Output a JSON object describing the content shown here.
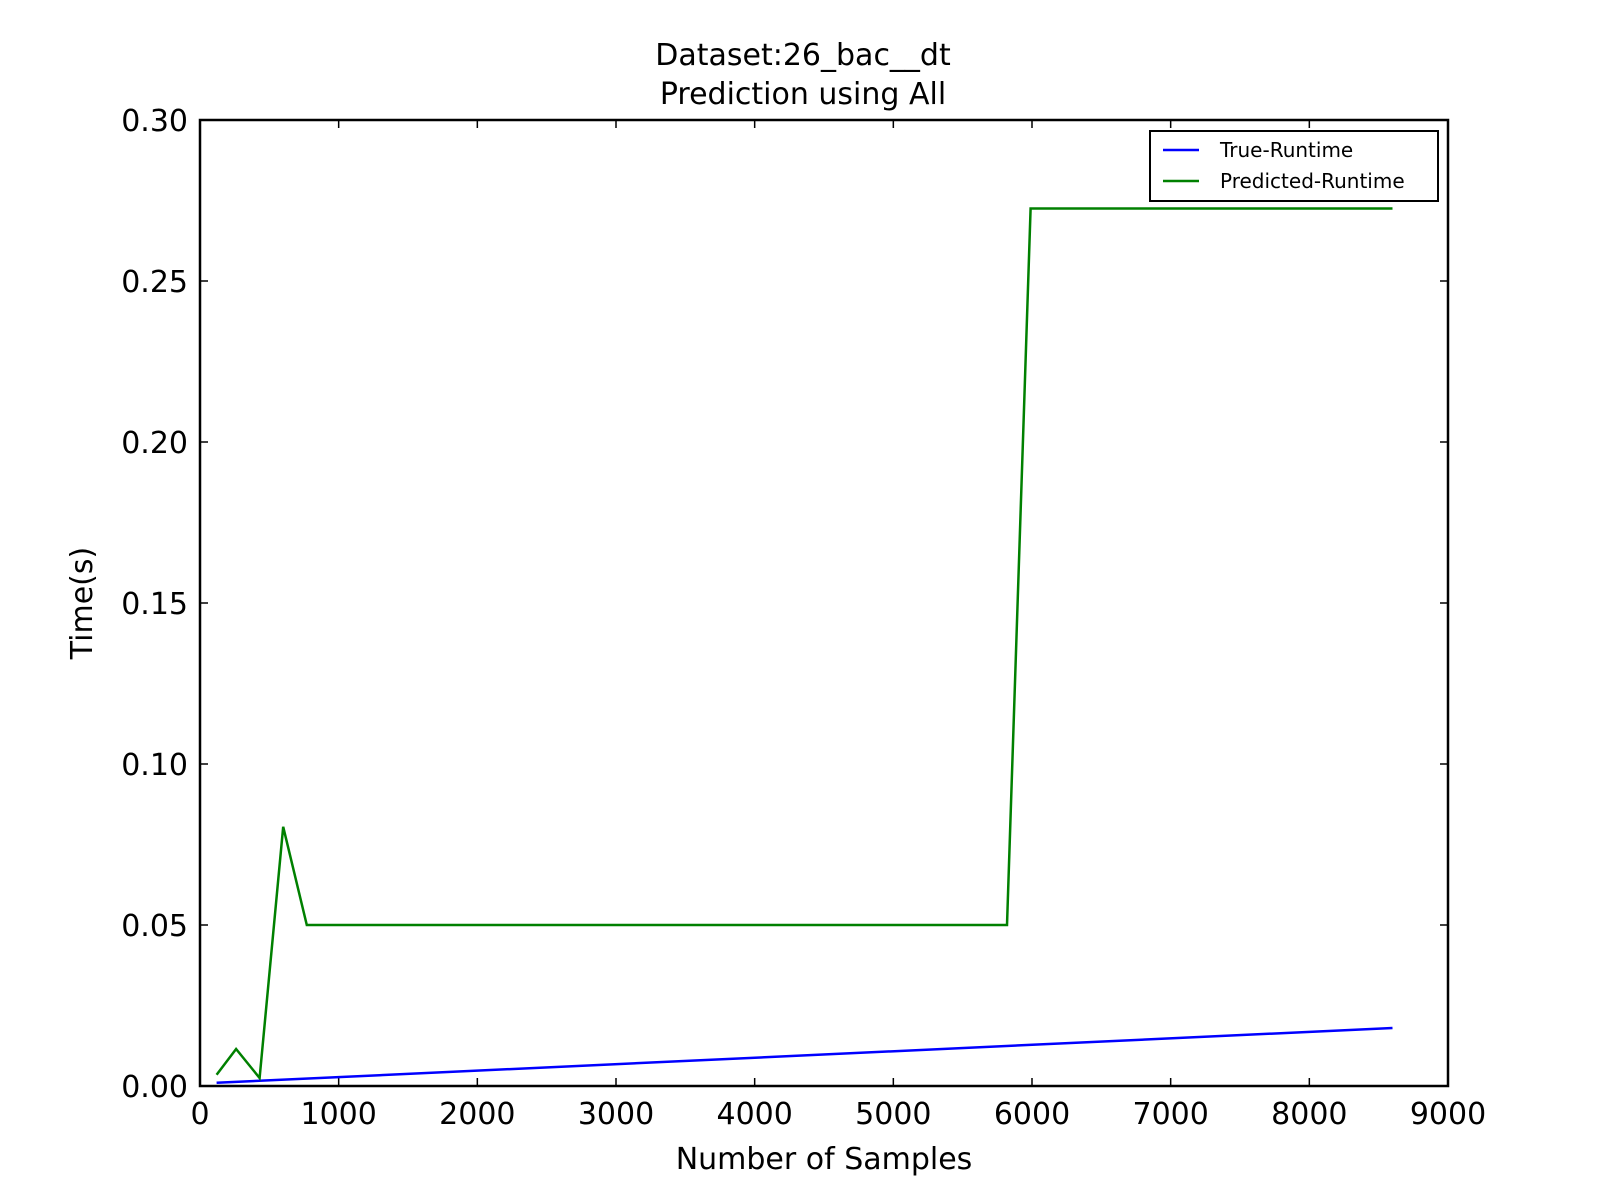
{
  "chart_data": {
    "type": "line",
    "title": "Dataset:26_bac__dt",
    "subtitle": "Prediction using All",
    "xlabel": "Number of Samples",
    "ylabel": "Time(s)",
    "xlim": [
      0,
      9000
    ],
    "ylim": [
      0,
      0.3
    ],
    "xticks": [
      "0",
      "1000",
      "2000",
      "3000",
      "4000",
      "5000",
      "6000",
      "7000",
      "8000",
      "9000"
    ],
    "yticks": [
      "0.00",
      "0.05",
      "0.10",
      "0.15",
      "0.20",
      "0.25",
      "0.30"
    ],
    "grid": false,
    "legend_position": "top-right",
    "series": [
      {
        "name": "True-Runtime",
        "color": "#0000ff",
        "x": [
          120,
          8600
        ],
        "y": [
          0.001,
          0.018
        ]
      },
      {
        "name": "Predicted-Runtime",
        "color": "#008000",
        "x": [
          120,
          260,
          430,
          600,
          770,
          5820,
          5990,
          8600
        ],
        "y": [
          0.0035,
          0.0115,
          0.0025,
          0.0805,
          0.05,
          0.05,
          0.2725,
          0.2725
        ]
      }
    ]
  }
}
